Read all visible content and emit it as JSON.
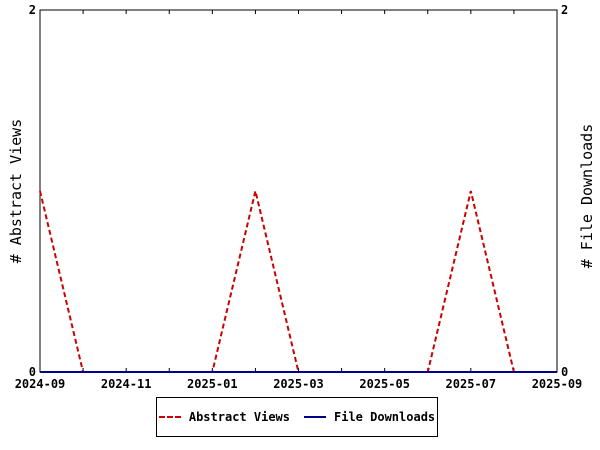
{
  "chart_data": {
    "type": "line",
    "x": [
      "2024-09",
      "2024-10",
      "2024-11",
      "2024-12",
      "2025-01",
      "2025-02",
      "2025-03",
      "2025-04",
      "2025-05",
      "2025-06",
      "2025-07",
      "2025-08",
      "2025-09"
    ],
    "x_tick_labels": [
      "2024-09",
      "2024-11",
      "2025-01",
      "2025-03",
      "2025-05",
      "2025-07",
      "2025-09"
    ],
    "y_left_ticks": [
      "0",
      "2"
    ],
    "y_right_ticks": [
      "0",
      "2"
    ],
    "ylabel": "# Abstract Views",
    "ylabel_right": "# File Downloads",
    "ylim": [
      0,
      2
    ],
    "ylim_right": [
      0,
      2
    ],
    "grid": false,
    "legend_position": "bottom",
    "series": [
      {
        "name": "Abstract Views",
        "axis": "left",
        "color": "#cc0000",
        "style": "dashed",
        "values": [
          1,
          0,
          0,
          0,
          0,
          1,
          0,
          0,
          0,
          0,
          1,
          0,
          0
        ]
      },
      {
        "name": "File Downloads",
        "axis": "right",
        "color": "#00008b",
        "style": "solid",
        "values": [
          0,
          0,
          0,
          0,
          0,
          0,
          0,
          0,
          0,
          0,
          0,
          0,
          0
        ]
      }
    ]
  }
}
